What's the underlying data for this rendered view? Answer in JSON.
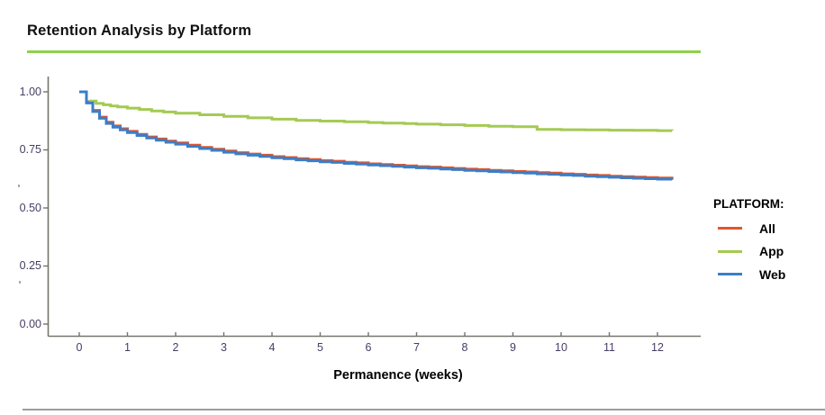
{
  "page": {
    "title": "Retention Analysis by Platform",
    "x_axis_title": "Permanence (weeks)",
    "colors": {
      "title_rule": "#8cd14b",
      "footer_rule": "#9d9d9d",
      "axis_line": "#75746e",
      "tick_text": "#483d63"
    }
  },
  "chart_data": {
    "type": "line",
    "subtype": "step_survival_curves",
    "title": "Retention Analysis by Platform",
    "xlabel": "Permanence (weeks)",
    "ylabel": "",
    "xlim": [
      -0.65,
      12.9
    ],
    "ylim": [
      -0.05,
      1.06
    ],
    "grid": false,
    "x_ticks": [
      0,
      1,
      2,
      3,
      4,
      5,
      6,
      7,
      8,
      9,
      10,
      11,
      12
    ],
    "y_ticks": [
      {
        "label": "0.00",
        "value": 0
      },
      {
        "label": "0.25",
        "value": 0.25
      },
      {
        "label": "0.50",
        "value": 0.5
      },
      {
        "label": "0.75",
        "value": 0.75
      },
      {
        "label": "1.00",
        "value": 1
      }
    ],
    "legend": {
      "title": "PLATFORM:",
      "position": "right"
    },
    "series": [
      {
        "name": "All",
        "color": "#e0562c",
        "points": [
          [
            0,
            1.0
          ],
          [
            0.15,
            0.957
          ],
          [
            0.28,
            0.92
          ],
          [
            0.42,
            0.891
          ],
          [
            0.56,
            0.869
          ],
          [
            0.7,
            0.853
          ],
          [
            0.85,
            0.841
          ],
          [
            1.0,
            0.83
          ],
          [
            1.2,
            0.817
          ],
          [
            1.4,
            0.806
          ],
          [
            1.6,
            0.797
          ],
          [
            1.8,
            0.788
          ],
          [
            2.0,
            0.78
          ],
          [
            2.25,
            0.77
          ],
          [
            2.5,
            0.761
          ],
          [
            2.75,
            0.753
          ],
          [
            3.0,
            0.745
          ],
          [
            3.25,
            0.738
          ],
          [
            3.5,
            0.732
          ],
          [
            3.75,
            0.727
          ],
          [
            4.0,
            0.721
          ],
          [
            4.25,
            0.717
          ],
          [
            4.5,
            0.712
          ],
          [
            4.75,
            0.708
          ],
          [
            5.0,
            0.704
          ],
          [
            5.25,
            0.701
          ],
          [
            5.5,
            0.697
          ],
          [
            5.75,
            0.694
          ],
          [
            6.0,
            0.69
          ],
          [
            6.25,
            0.687
          ],
          [
            6.5,
            0.684
          ],
          [
            6.75,
            0.681
          ],
          [
            7.0,
            0.678
          ],
          [
            7.25,
            0.676
          ],
          [
            7.5,
            0.673
          ],
          [
            7.75,
            0.67
          ],
          [
            8.0,
            0.667
          ],
          [
            8.25,
            0.665
          ],
          [
            8.5,
            0.662
          ],
          [
            8.75,
            0.66
          ],
          [
            9.0,
            0.657
          ],
          [
            9.25,
            0.655
          ],
          [
            9.5,
            0.652
          ],
          [
            9.75,
            0.65
          ],
          [
            10.0,
            0.647
          ],
          [
            10.25,
            0.645
          ],
          [
            10.5,
            0.642
          ],
          [
            10.75,
            0.64
          ],
          [
            11.0,
            0.637
          ],
          [
            11.25,
            0.635
          ],
          [
            11.5,
            0.633
          ],
          [
            11.75,
            0.631
          ],
          [
            12.0,
            0.629
          ],
          [
            12.3,
            0.626
          ]
        ]
      },
      {
        "name": "App",
        "color": "#a4ca52",
        "points": [
          [
            0.2,
            0.96
          ],
          [
            0.35,
            0.95
          ],
          [
            0.5,
            0.944
          ],
          [
            0.65,
            0.939
          ],
          [
            0.8,
            0.935
          ],
          [
            1.0,
            0.93
          ],
          [
            1.25,
            0.924
          ],
          [
            1.5,
            0.918
          ],
          [
            1.75,
            0.913
          ],
          [
            2.0,
            0.908
          ],
          [
            2.5,
            0.901
          ],
          [
            3.0,
            0.894
          ],
          [
            3.5,
            0.888
          ],
          [
            4.0,
            0.882
          ],
          [
            4.5,
            0.877
          ],
          [
            5.0,
            0.874
          ],
          [
            5.5,
            0.871
          ],
          [
            6.0,
            0.868
          ],
          [
            6.3,
            0.865
          ],
          [
            6.75,
            0.863
          ],
          [
            7.0,
            0.861
          ],
          [
            7.5,
            0.858
          ],
          [
            8.0,
            0.855
          ],
          [
            8.5,
            0.852
          ],
          [
            9.0,
            0.85
          ],
          [
            9.5,
            0.838
          ],
          [
            10.0,
            0.837
          ],
          [
            10.5,
            0.836
          ],
          [
            11.0,
            0.835
          ],
          [
            11.5,
            0.834
          ],
          [
            12.0,
            0.833
          ],
          [
            12.3,
            0.832
          ]
        ]
      },
      {
        "name": "Web",
        "color": "#3a7ec8",
        "points": [
          [
            0,
            1.0
          ],
          [
            0.15,
            0.952
          ],
          [
            0.28,
            0.915
          ],
          [
            0.42,
            0.886
          ],
          [
            0.56,
            0.864
          ],
          [
            0.7,
            0.848
          ],
          [
            0.85,
            0.836
          ],
          [
            1.0,
            0.825
          ],
          [
            1.2,
            0.812
          ],
          [
            1.4,
            0.801
          ],
          [
            1.6,
            0.792
          ],
          [
            1.8,
            0.783
          ],
          [
            2.0,
            0.775
          ],
          [
            2.25,
            0.765
          ],
          [
            2.5,
            0.756
          ],
          [
            2.75,
            0.748
          ],
          [
            3.0,
            0.74
          ],
          [
            3.25,
            0.733
          ],
          [
            3.5,
            0.727
          ],
          [
            3.75,
            0.722
          ],
          [
            4.0,
            0.716
          ],
          [
            4.25,
            0.712
          ],
          [
            4.5,
            0.707
          ],
          [
            4.75,
            0.703
          ],
          [
            5.0,
            0.699
          ],
          [
            5.25,
            0.696
          ],
          [
            5.5,
            0.692
          ],
          [
            5.75,
            0.689
          ],
          [
            6.0,
            0.685
          ],
          [
            6.25,
            0.682
          ],
          [
            6.5,
            0.679
          ],
          [
            6.75,
            0.676
          ],
          [
            7.0,
            0.673
          ],
          [
            7.25,
            0.671
          ],
          [
            7.5,
            0.668
          ],
          [
            7.75,
            0.665
          ],
          [
            8.0,
            0.662
          ],
          [
            8.25,
            0.66
          ],
          [
            8.5,
            0.657
          ],
          [
            8.75,
            0.655
          ],
          [
            9.0,
            0.652
          ],
          [
            9.25,
            0.65
          ],
          [
            9.5,
            0.647
          ],
          [
            9.75,
            0.645
          ],
          [
            10.0,
            0.642
          ],
          [
            10.25,
            0.64
          ],
          [
            10.5,
            0.637
          ],
          [
            10.75,
            0.635
          ],
          [
            11.0,
            0.632
          ],
          [
            11.25,
            0.63
          ],
          [
            11.5,
            0.628
          ],
          [
            11.75,
            0.626
          ],
          [
            12.0,
            0.624
          ],
          [
            12.3,
            0.621
          ]
        ]
      }
    ]
  }
}
